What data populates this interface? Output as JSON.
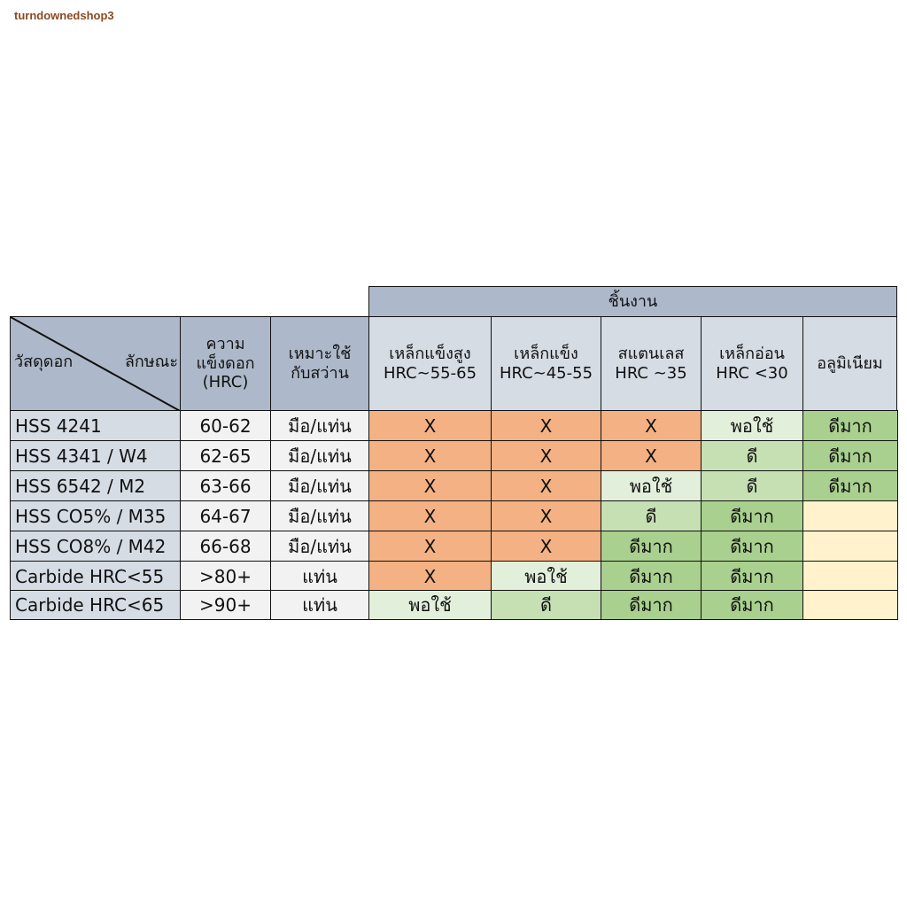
{
  "watermark": "turndownedshop3",
  "table": {
    "group_header": "ชิ้นงาน",
    "corner": {
      "left": "วัสดุดอก",
      "right": "ลักษณะ"
    },
    "col_hardness": [
      "ความ",
      "แข็งดอก",
      "(HRC)"
    ],
    "col_usage": [
      "เหมาะใช้",
      "กับสว่าน"
    ],
    "workpieces": [
      {
        "name": "เหล็กแข็งสูง",
        "hrc": "HRC~55-65"
      },
      {
        "name": "เหล็กแข็ง",
        "hrc": "HRC~45-55"
      },
      {
        "name": "สแตนเลส",
        "hrc": "HRC ~35"
      },
      {
        "name": "เหล็กอ่อน",
        "hrc": "HRC <30"
      },
      {
        "name": "อลูมิเนียม",
        "hrc": ""
      }
    ],
    "rows": [
      {
        "material": "HSS 4241",
        "hardness": "60-62",
        "usage": "มือ/แท่น",
        "ratings": [
          "X",
          "X",
          "X",
          "พอใช้",
          "ดีมาก"
        ]
      },
      {
        "material": "HSS 4341 / W4",
        "hardness": "62-65",
        "usage": "มือ/แท่น",
        "ratings": [
          "X",
          "X",
          "X",
          "ดี",
          "ดีมาก"
        ]
      },
      {
        "material": "HSS 6542 / M2",
        "hardness": "63-66",
        "usage": "มือ/แท่น",
        "ratings": [
          "X",
          "X",
          "พอใช้",
          "ดี",
          "ดีมาก"
        ]
      },
      {
        "material": "HSS CO5% / M35",
        "hardness": "64-67",
        "usage": "มือ/แท่น",
        "ratings": [
          "X",
          "X",
          "ดี",
          "ดีมาก",
          ""
        ]
      },
      {
        "material": "HSS CO8% / M42",
        "hardness": "66-68",
        "usage": "มือ/แท่น",
        "ratings": [
          "X",
          "X",
          "ดีมาก",
          "ดีมาก",
          ""
        ]
      },
      {
        "material": "Carbide HRC<55",
        "hardness": ">80+",
        "usage": "แท่น",
        "ratings": [
          "X",
          "พอใช้",
          "ดีมาก",
          "ดีมาก",
          ""
        ]
      },
      {
        "material": "Carbide HRC<65",
        "hardness": ">90+",
        "usage": "แท่น",
        "ratings": [
          "พอใช้",
          "ดี",
          "ดีมาก",
          "ดีมาก",
          ""
        ]
      }
    ]
  },
  "colors": {
    "header": "#d6dce4",
    "header_dark": "#adb9ca",
    "not_suitable": "#f4b183",
    "fair": "#e2efda",
    "good": "#c6e0b4",
    "very_good": "#a9d08e",
    "blank": "#fff2cc"
  }
}
